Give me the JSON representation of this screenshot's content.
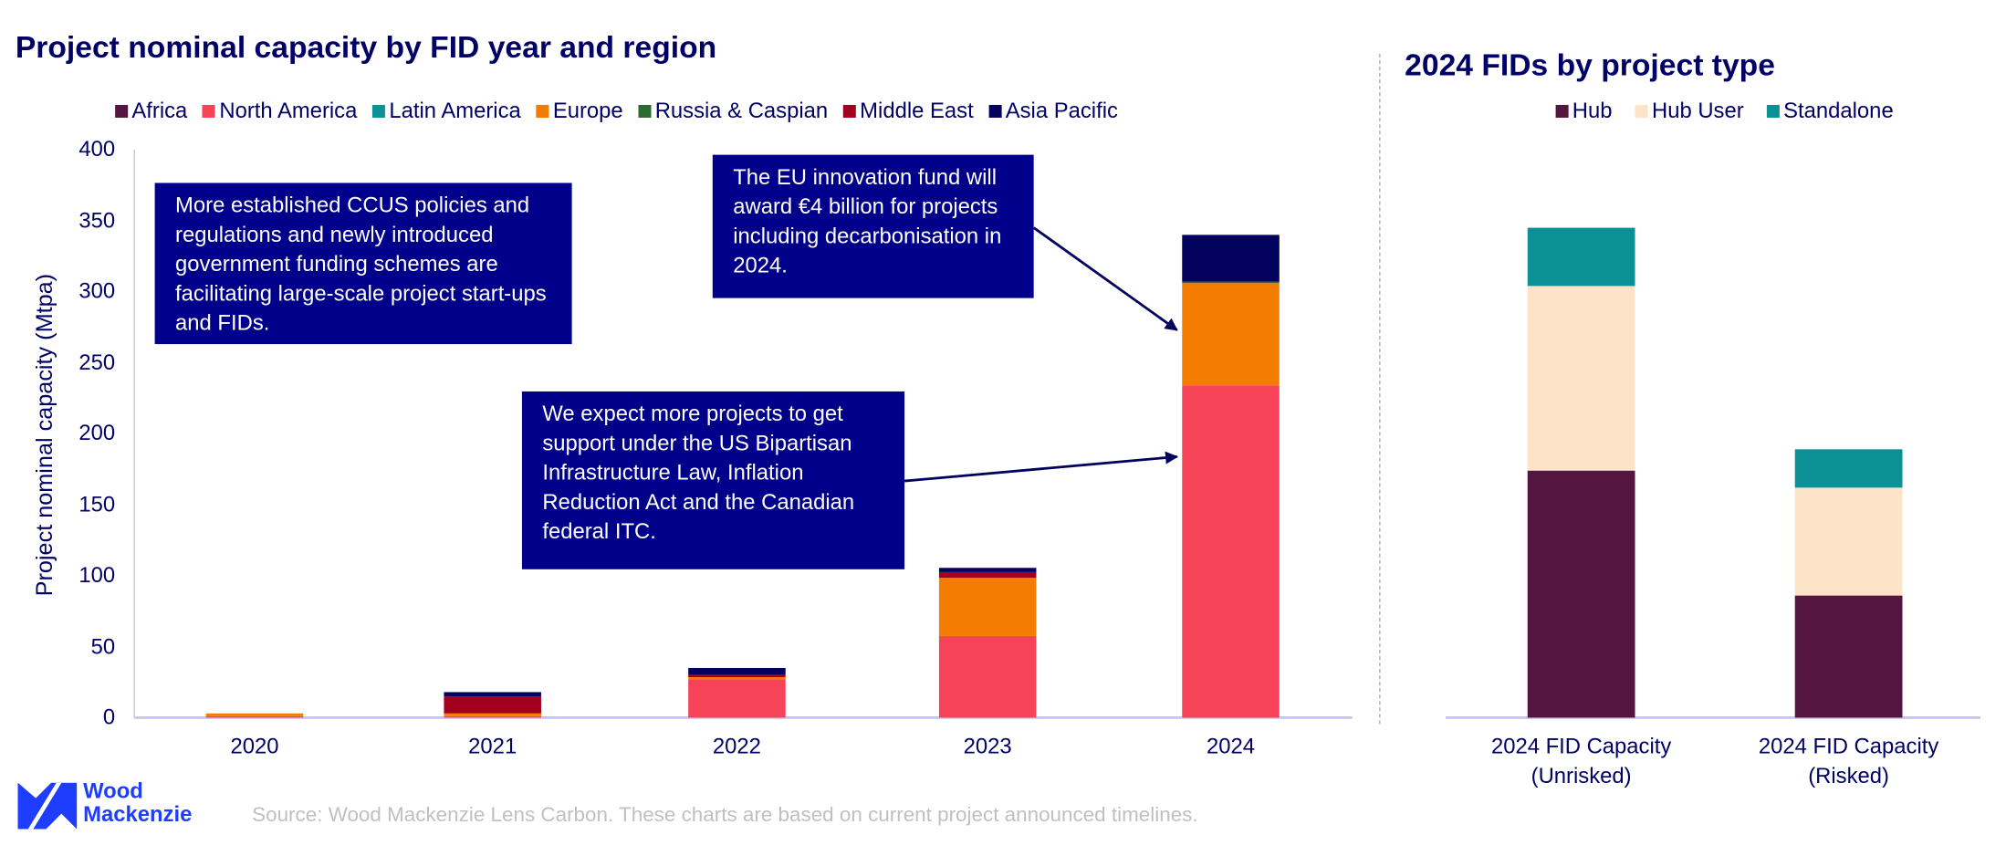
{
  "left_chart": {
    "title": "Project nominal capacity by FID year and region",
    "ylabel": "Project nominal capacity (Mtpa)"
  },
  "right_chart": {
    "title": "2024 FIDs by project type"
  },
  "annotations": [
    "More established CCUS policies and regulations and newly introduced government funding schemes are facilitating large-scale project start-ups and FIDs.",
    "The EU innovation fund will award €4 billion for projects including decarbonisation in 2024.",
    "We expect more projects to get support under the US Bipartisan Infrastructure Law, Inflation Reduction Act and the Canadian federal ITC."
  ],
  "footer": {
    "logo_line1": "Wood",
    "logo_line2": "Mackenzie",
    "source": "Source: Wood Mackenzie Lens Carbon. These charts are based on current project announced timelines."
  },
  "chart_data": [
    {
      "type": "bar",
      "stacked": true,
      "title": "Project nominal capacity by FID year and region",
      "xlabel": "",
      "ylabel": "Project nominal capacity (Mtpa)",
      "ylim": [
        0,
        400
      ],
      "yticks": [
        0,
        50,
        100,
        150,
        200,
        250,
        300,
        350,
        400
      ],
      "legend": "top",
      "grid": false,
      "categories": [
        "2020",
        "2021",
        "2022",
        "2023",
        "2024"
      ],
      "series": [
        {
          "name": "Africa",
          "color": "#541540",
          "values": [
            0,
            0,
            0,
            0,
            0
          ]
        },
        {
          "name": "North America",
          "color": "#f74358",
          "values": [
            1,
            1,
            27,
            57,
            234
          ]
        },
        {
          "name": "Latin America",
          "color": "#0a9396",
          "values": [
            0,
            0,
            0,
            0.5,
            0
          ]
        },
        {
          "name": "Europe",
          "color": "#f47c00",
          "values": [
            2,
            2,
            1.5,
            41,
            72
          ]
        },
        {
          "name": "Russia & Caspian",
          "color": "#2b6a30",
          "values": [
            0,
            0,
            0,
            0,
            1
          ]
        },
        {
          "name": "Middle East",
          "color": "#a3001f",
          "values": [
            0,
            12,
            1.5,
            4,
            0
          ]
        },
        {
          "name": "Asia Pacific",
          "color": "#03035e",
          "values": [
            0,
            3,
            5,
            3,
            33
          ]
        }
      ]
    },
    {
      "type": "bar",
      "stacked": true,
      "title": "2024 FIDs by project type",
      "legend": "top",
      "grid": false,
      "ylim": [
        0,
        400
      ],
      "categories": [
        "2024 FID Capacity (Unrisked)",
        "2024 FID Capacity (Risked)"
      ],
      "category_lines": [
        [
          "2024 FID Capacity",
          "(Unrisked)"
        ],
        [
          "2024 FID Capacity",
          "(Risked)"
        ]
      ],
      "series": [
        {
          "name": "Hub",
          "color": "#541540",
          "values": [
            174,
            86
          ]
        },
        {
          "name": "Hub User",
          "color": "#fde4c9",
          "values": [
            130,
            76
          ]
        },
        {
          "name": "Standalone",
          "color": "#0a9196",
          "values": [
            41,
            27
          ]
        }
      ]
    }
  ]
}
